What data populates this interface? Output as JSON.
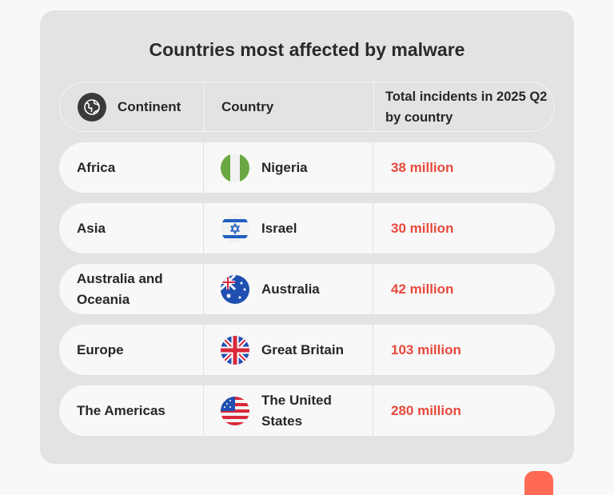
{
  "title": "Countries most affected by malware",
  "header": {
    "continent": "Continent",
    "country": "Country",
    "total": "Total incidents in 2025 Q2 by country",
    "icon": "globe-icon"
  },
  "rows": [
    {
      "continent": "Africa",
      "country": "Nigeria",
      "flag": "nigeria-flag-icon",
      "total": "38 million"
    },
    {
      "continent": "Asia",
      "country": "Israel",
      "flag": "israel-flag-icon",
      "total": "30 million"
    },
    {
      "continent": "Australia and Oceania",
      "country": "Australia",
      "flag": "australia-flag-icon",
      "total": "42 million"
    },
    {
      "continent": "Europe",
      "country": "Great Britain",
      "flag": "uk-flag-icon",
      "total": "103 million"
    },
    {
      "continent": "The Americas",
      "country": "The United States",
      "flag": "us-flag-icon",
      "total": "280 million"
    }
  ],
  "colors": {
    "accent": "#e8493c",
    "card": "#e3e3e3",
    "row": "#f8f8f8"
  }
}
